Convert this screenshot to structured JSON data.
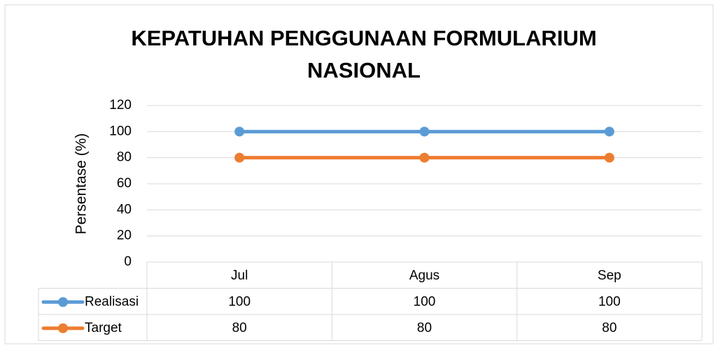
{
  "chart_data": {
    "type": "line",
    "title": "KEPATUHAN PENGGUNAAN FORMULARIUM NASIONAL",
    "y_label": "Persentase (%)",
    "categories": [
      "Jul",
      "Agus",
      "Sep"
    ],
    "series": [
      {
        "name": "Realisasi",
        "color": "#5b9bd5",
        "values": [
          100,
          100,
          100
        ]
      },
      {
        "name": "Target",
        "color": "#ed7d31",
        "values": [
          80,
          80,
          80
        ]
      }
    ],
    "ylim": [
      0,
      120
    ],
    "yticks": [
      0,
      20,
      40,
      60,
      80,
      100,
      120
    ],
    "grid": true,
    "data_table": true
  }
}
